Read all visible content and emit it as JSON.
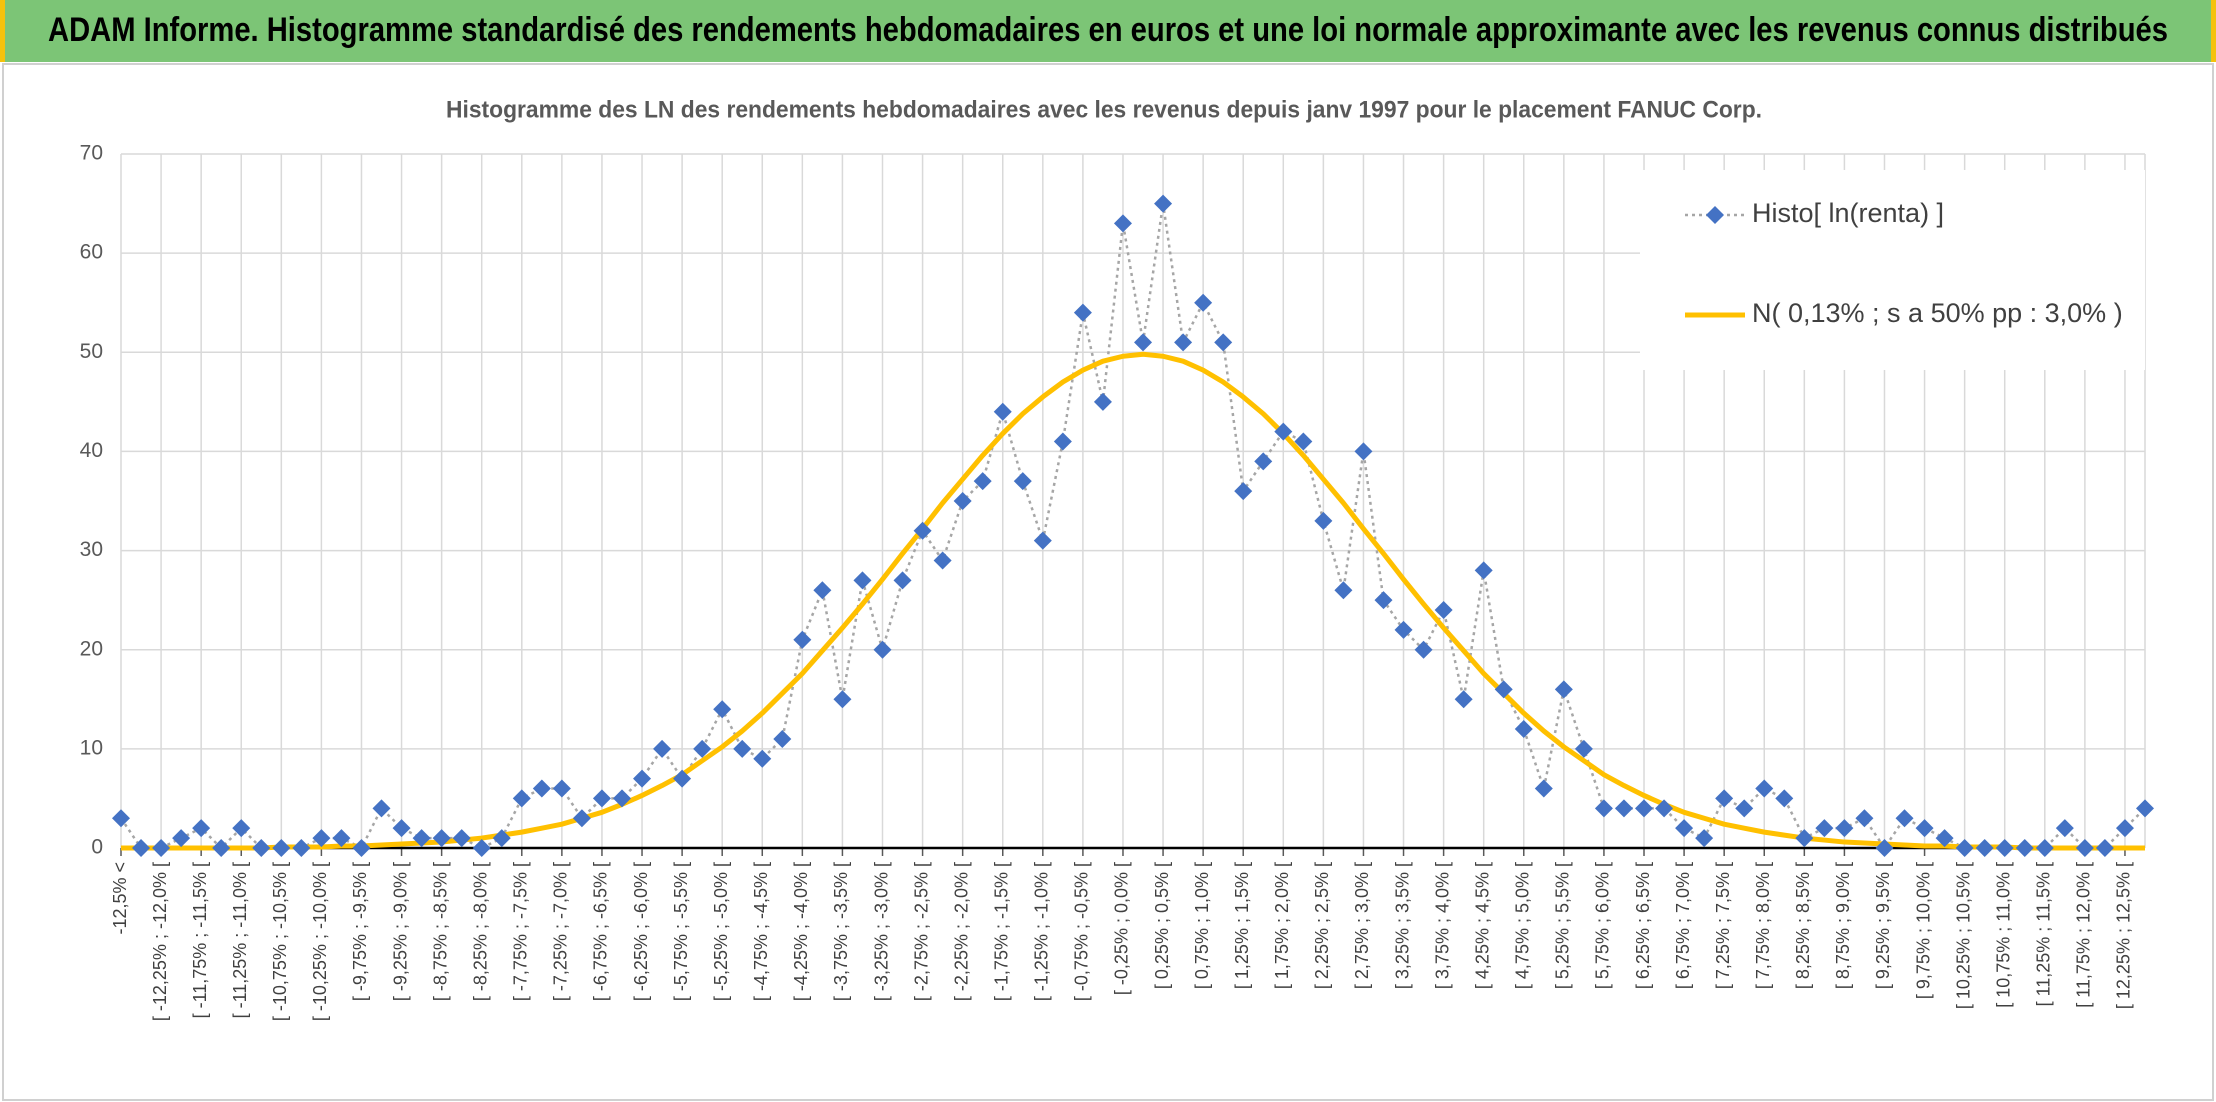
{
  "chart_data": {
    "type": "line",
    "title": "ADAM Informe. Histogramme standardisé des rendements hebdomadaires en euros et une loi normale approximante avec les revenus connus distribués",
    "subtitle": "Histogramme des LN des rendements hebdomadaires avec les revenus depuis janv 1997 pour le placement FANUC Corp.",
    "categories": [
      "-12,5% <",
      null,
      "[ -12,25% ; -12,0% [",
      null,
      "[ -11,75% ; -11,5% [",
      null,
      "[ -11,25% ; -11,0% [",
      null,
      "[ -10,75% ; -10,5% [",
      null,
      "[ -10,25% ; -10,0% [",
      null,
      "[ -9,75% ; -9,5% [",
      null,
      "[ -9,25% ; -9,0% [",
      null,
      "[ -8,75% ; -8,5% [",
      null,
      "[ -8,25% ; -8,0% [",
      null,
      "[ -7,75% ; -7,5% [",
      null,
      "[ -7,25% ; -7,0% [",
      null,
      "[ -6,75% ; -6,5% [",
      null,
      "[ -6,25% ; -6,0% [",
      null,
      "[ -5,75% ; -5,5% [",
      null,
      "[ -5,25% ; -5,0% [",
      null,
      "[ -4,75% ; -4,5% [",
      null,
      "[ -4,25% ; -4,0% [",
      null,
      "[ -3,75% ; -3,5% [",
      null,
      "[ -3,25% ; -3,0% [",
      null,
      "[ -2,75% ; -2,5% [",
      null,
      "[ -2,25% ; -2,0% [",
      null,
      "[ -1,75% ; -1,5% [",
      null,
      "[ -1,25% ; -1,0% [",
      null,
      "[ -0,75% ; -0,5% [",
      null,
      "[ -0,25% ; 0,0% [",
      null,
      "[ 0,25% ; 0,5% [",
      null,
      "[ 0,75% ; 1,0% [",
      null,
      "[ 1,25% ; 1,5% [",
      null,
      "[ 1,75% ; 2,0% [",
      null,
      "[ 2,25% ; 2,5% [",
      null,
      "[ 2,75% ; 3,0% [",
      null,
      "[ 3,25% ; 3,5% [",
      null,
      "[ 3,75% ; 4,0% [",
      null,
      "[ 4,25% ; 4,5% [",
      null,
      "[ 4,75% ; 5,0% [",
      null,
      "[ 5,25% ; 5,5% [",
      null,
      "[ 5,75% ; 6,0% [",
      null,
      "[ 6,25% ; 6,5% [",
      null,
      "[ 6,75% ; 7,0% [",
      null,
      "[ 7,25% ; 7,5% [",
      null,
      "[ 7,75% ; 8,0% [",
      null,
      "[ 8,25% ; 8,5% [",
      null,
      "[ 8,75% ; 9,0% [",
      null,
      "[ 9,25% ; 9,5% [",
      null,
      "[ 9,75% ; 10,0% [",
      null,
      "[ 10,25% ; 10,5% [",
      null,
      "[ 10,75% ; 11,0% [",
      null,
      "[ 11,25% ; 11,5% [",
      null,
      "[ 11,75% ; 12,0% [",
      null,
      "[ 12,25% ; 12,5% [",
      null
    ],
    "series": [
      {
        "name": "Histo[ ln(renta) ]",
        "color": "#4472c4",
        "line_color": "#a6a6a6",
        "line_style": "dotted",
        "marker": "diamond",
        "values": [
          3,
          0,
          0,
          1,
          2,
          0,
          2,
          0,
          0,
          0,
          1,
          1,
          0,
          4,
          2,
          1,
          1,
          1,
          0,
          1,
          5,
          6,
          6,
          3,
          5,
          5,
          7,
          10,
          7,
          10,
          14,
          10,
          9,
          11,
          21,
          26,
          15,
          27,
          20,
          27,
          32,
          29,
          35,
          37,
          44,
          37,
          31,
          41,
          54,
          45,
          63,
          51,
          65,
          51,
          55,
          51,
          36,
          39,
          42,
          41,
          33,
          26,
          40,
          25,
          22,
          20,
          24,
          15,
          28,
          16,
          12,
          6,
          16,
          10,
          4,
          4,
          4,
          4,
          2,
          1,
          5,
          4,
          6,
          5,
          1,
          2,
          2,
          3,
          0,
          3,
          2,
          1,
          0,
          0,
          0,
          0,
          0,
          2,
          0,
          0,
          2,
          4
        ]
      },
      {
        "name": "N( 0,13% ; s a 50% pp : 3,0% )",
        "color": "#ffc000",
        "line_style": "solid",
        "values": [
          0,
          0,
          0,
          0,
          0,
          0,
          0,
          0,
          0.1,
          0.1,
          0.1,
          0.2,
          0.2,
          0.3,
          0.4,
          0.5,
          0.6,
          0.8,
          1.0,
          1.3,
          1.6,
          2.0,
          2.4,
          3.0,
          3.6,
          4.4,
          5.3,
          6.3,
          7.4,
          8.8,
          10.2,
          11.8,
          13.6,
          15.6,
          17.6,
          19.9,
          22.2,
          24.6,
          27.1,
          29.7,
          32.2,
          34.8,
          37.2,
          39.6,
          41.8,
          43.8,
          45.5,
          47.0,
          48.2,
          49.1,
          49.6,
          49.8,
          49.6,
          49.1,
          48.2,
          47.0,
          45.5,
          43.8,
          41.8,
          39.6,
          37.2,
          34.8,
          32.2,
          29.7,
          27.1,
          24.6,
          22.2,
          19.9,
          17.6,
          15.6,
          13.6,
          11.8,
          10.2,
          8.8,
          7.4,
          6.3,
          5.3,
          4.4,
          3.6,
          3.0,
          2.4,
          2.0,
          1.6,
          1.3,
          1.0,
          0.8,
          0.6,
          0.5,
          0.4,
          0.3,
          0.2,
          0.2,
          0.1,
          0.1,
          0.1,
          0,
          0,
          0,
          0,
          0,
          0,
          0
        ]
      }
    ],
    "ylim": [
      0,
      70
    ],
    "yticks": [
      0,
      10,
      20,
      30,
      40,
      50,
      60,
      70
    ],
    "grid": true,
    "legend": "upper right"
  }
}
